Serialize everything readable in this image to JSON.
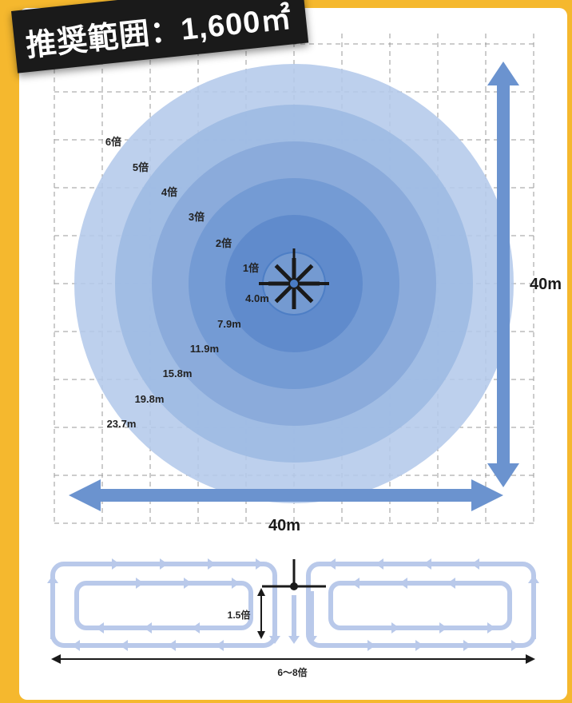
{
  "title": "推奨範囲：1,600㎡",
  "rings": [
    {
      "factor": "1倍",
      "radius": "4.0m",
      "color": "#4a7cc4"
    },
    {
      "factor": "2倍",
      "radius": "7.9m",
      "color": "#5d89cb"
    },
    {
      "factor": "3倍",
      "radius": "11.9m",
      "color": "#7198d3"
    },
    {
      "factor": "4倍",
      "radius": "15.8m",
      "color": "#87a9da"
    },
    {
      "factor": "5倍",
      "radius": "19.8m",
      "color": "#9db9e2"
    },
    {
      "factor": "6倍",
      "radius": "23.7m",
      "color": "#b4c9ea"
    }
  ],
  "dimensions": {
    "width": "40m",
    "height": "40m"
  },
  "bottom": {
    "spacing": "1.5倍",
    "span": "6〜8倍"
  },
  "colors": {
    "background": "#f5b82e",
    "arrow": "#6b93cf",
    "flow_arrow": "#b9c9ea"
  }
}
